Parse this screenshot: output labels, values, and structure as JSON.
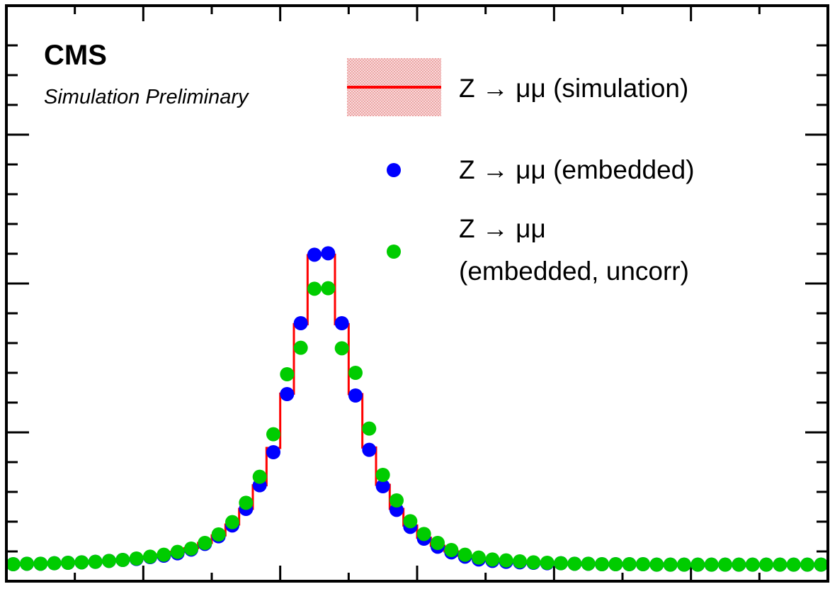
{
  "chart_data": {
    "type": "scatter",
    "experiment_label": "CMS",
    "experiment_sublabel": "Simulation Preliminary",
    "xlabel": "",
    "ylabel": "",
    "xlim": [
      0,
      60
    ],
    "ylim": [
      0,
      1
    ],
    "grid": false,
    "legend_position": "top-right",
    "x": [
      0.5,
      1.5,
      2.5,
      3.5,
      4.5,
      5.5,
      6.5,
      7.5,
      8.5,
      9.5,
      10.5,
      11.5,
      12.5,
      13.5,
      14.5,
      15.5,
      16.5,
      17.5,
      18.5,
      19.5,
      20.5,
      21.5,
      22.5,
      23.5,
      24.5,
      25.5,
      26.5,
      27.5,
      28.5,
      29.5,
      30.5,
      31.5,
      32.5,
      33.5,
      34.5,
      35.5,
      36.5,
      37.5,
      38.5,
      39.5,
      40.5,
      41.5,
      42.5,
      43.5,
      44.5,
      45.5,
      46.5,
      47.5,
      48.5,
      49.5,
      50.5,
      51.5,
      52.5,
      53.5,
      54.5,
      55.5,
      56.5,
      57.5,
      58.5,
      59.5
    ],
    "series": [
      {
        "name": "Z → μμ (simulation)",
        "style": "histogram",
        "color": "#ff0000",
        "band_color": "#f4c4c4",
        "values": [
          0.003,
          0.004,
          0.004,
          0.005,
          0.006,
          0.007,
          0.008,
          0.01,
          0.012,
          0.015,
          0.019,
          0.023,
          0.029,
          0.037,
          0.048,
          0.064,
          0.087,
          0.12,
          0.17,
          0.249,
          0.364,
          0.511,
          0.657,
          0.658,
          0.511,
          0.363,
          0.25,
          0.171,
          0.12,
          0.085,
          0.059,
          0.042,
          0.03,
          0.021,
          0.015,
          0.012,
          0.01,
          0.008,
          0.007,
          0.006,
          0.005,
          0.004,
          0.004,
          0.003,
          0.003,
          0.003,
          0.003,
          0.002,
          0.002,
          0.002,
          0.002,
          0.002,
          0.002,
          0.002,
          0.002,
          0.002,
          0.002,
          0.002,
          0.002,
          0.002
        ]
      },
      {
        "name": "Z → μμ (embedded)",
        "style": "markers",
        "color": "#0000ff",
        "values": [
          0.003,
          0.004,
          0.004,
          0.005,
          0.006,
          0.007,
          0.008,
          0.01,
          0.012,
          0.014,
          0.018,
          0.021,
          0.026,
          0.034,
          0.046,
          0.062,
          0.085,
          0.12,
          0.17,
          0.24,
          0.363,
          0.513,
          0.658,
          0.661,
          0.513,
          0.36,
          0.245,
          0.168,
          0.118,
          0.082,
          0.057,
          0.04,
          0.028,
          0.019,
          0.013,
          0.01,
          0.008,
          0.007,
          0.006,
          0.005,
          0.005,
          0.004,
          0.004,
          0.003,
          0.003,
          0.003,
          0.003,
          0.002,
          0.002,
          0.002,
          0.002,
          0.002,
          0.002,
          0.002,
          0.002,
          0.002,
          0.002,
          0.002,
          0.002,
          0.002
        ]
      },
      {
        "name": "Z → μμ (embedded, uncorr)",
        "style": "markers",
        "color": "#00cc00",
        "values": [
          0.003,
          0.004,
          0.004,
          0.005,
          0.006,
          0.007,
          0.008,
          0.01,
          0.012,
          0.015,
          0.019,
          0.023,
          0.029,
          0.036,
          0.048,
          0.066,
          0.092,
          0.133,
          0.188,
          0.278,
          0.405,
          0.461,
          0.586,
          0.587,
          0.46,
          0.408,
          0.29,
          0.192,
          0.138,
          0.094,
          0.067,
          0.048,
          0.033,
          0.023,
          0.017,
          0.013,
          0.011,
          0.009,
          0.007,
          0.006,
          0.005,
          0.004,
          0.004,
          0.003,
          0.003,
          0.003,
          0.003,
          0.002,
          0.002,
          0.002,
          0.002,
          0.002,
          0.002,
          0.002,
          0.002,
          0.002,
          0.002,
          0.002,
          0.002,
          0.002
        ]
      }
    ]
  }
}
